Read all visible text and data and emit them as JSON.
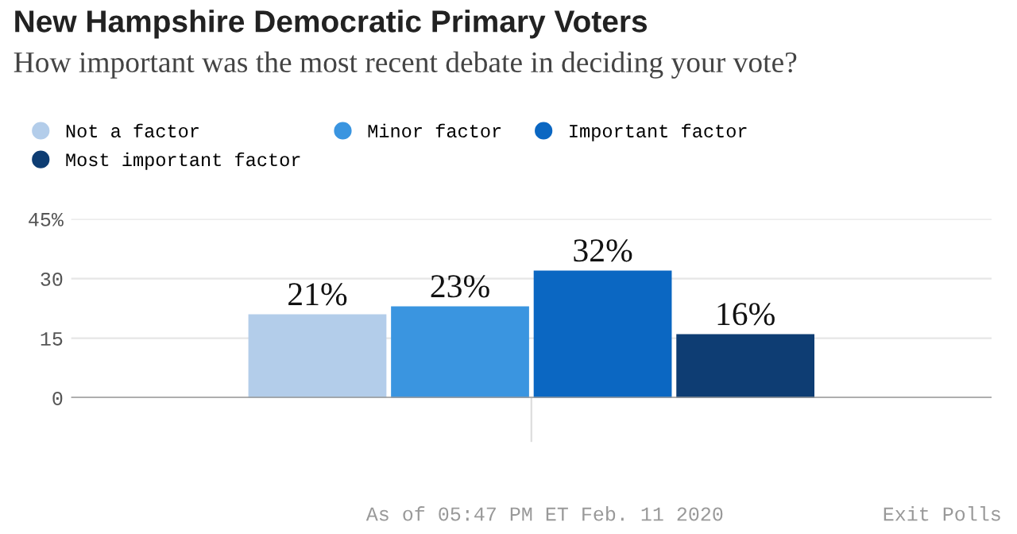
{
  "chart_data": {
    "type": "bar",
    "title": "New Hampshire Democratic Primary Voters",
    "subtitle": "How important was the most recent debate in deciding your vote?",
    "categories": [
      null
    ],
    "series": [
      {
        "name": "Not a factor",
        "color": "#b3cdea",
        "values": [
          21
        ],
        "value_labels": [
          "21%"
        ]
      },
      {
        "name": "Minor factor",
        "color": "#3a95e0",
        "values": [
          23
        ],
        "value_labels": [
          "23%"
        ]
      },
      {
        "name": "Important factor",
        "color": "#0b67c2",
        "values": [
          32
        ],
        "value_labels": [
          "32%"
        ]
      },
      {
        "name": "Most important factor",
        "color": "#0e3d73",
        "values": [
          16
        ],
        "value_labels": [
          "16%"
        ]
      }
    ],
    "ylim": [
      0,
      45
    ],
    "yticks": [
      0,
      15,
      30,
      {
        "value": 45,
        "label": "45%"
      }
    ],
    "grid": "y",
    "legend": "top left",
    "annotations": [
      "As of 05:47 PM ET Feb. 11 2020",
      "Exit Polls"
    ]
  }
}
